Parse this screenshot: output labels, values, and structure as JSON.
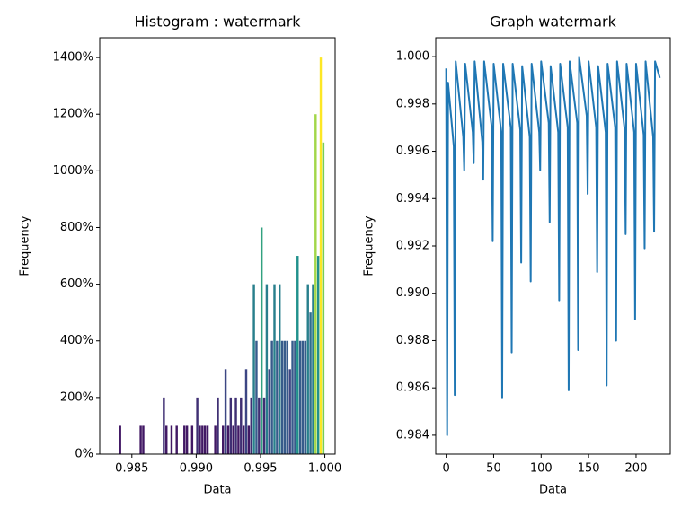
{
  "chart_data": [
    {
      "type": "histogram",
      "title": "Histogram : watermark",
      "xlabel": "Data",
      "ylabel": "Frequency",
      "colormap": "viridis",
      "bins": [
        0.984,
        0.9842,
        0.9844,
        0.9846,
        0.9848,
        0.985,
        0.9852,
        0.9854,
        0.9856,
        0.9858,
        0.986,
        0.9862,
        0.9864,
        0.9866,
        0.9868,
        0.987,
        0.9872,
        0.9874,
        0.9876,
        0.9878,
        0.988,
        0.9882,
        0.9884,
        0.9886,
        0.9888,
        0.989,
        0.9892,
        0.9894,
        0.9896,
        0.9898,
        0.99,
        0.9902,
        0.9904,
        0.9906,
        0.9908,
        0.991,
        0.9912,
        0.9914,
        0.9916,
        0.9918,
        0.992,
        0.9922,
        0.9924,
        0.9926,
        0.9928,
        0.993,
        0.9932,
        0.9934,
        0.9936,
        0.9938,
        0.994,
        0.9942,
        0.9944,
        0.9946,
        0.9948,
        0.995,
        0.9952,
        0.9954,
        0.9956,
        0.9958,
        0.996,
        0.9962,
        0.9964,
        0.9966,
        0.9968,
        0.997,
        0.9972,
        0.9974,
        0.9976,
        0.9978,
        0.998,
        0.9982,
        0.9984,
        0.9986,
        0.9988,
        0.999,
        0.9992,
        0.9994,
        0.9996,
        0.9998,
        1.0
      ],
      "values": [
        100,
        0,
        0,
        0,
        0,
        0,
        0,
        0,
        100,
        100,
        0,
        0,
        0,
        0,
        0,
        0,
        0,
        200,
        100,
        0,
        100,
        0,
        100,
        0,
        0,
        100,
        100,
        0,
        100,
        0,
        200,
        100,
        100,
        100,
        100,
        0,
        0,
        100,
        200,
        0,
        100,
        300,
        100,
        200,
        100,
        200,
        100,
        200,
        100,
        300,
        100,
        200,
        600,
        400,
        200,
        800,
        200,
        600,
        300,
        400,
        600,
        400,
        600,
        400,
        400,
        400,
        300,
        400,
        400,
        700,
        400,
        400,
        400,
        600,
        500,
        600,
        1200,
        700,
        1400,
        1100
      ],
      "xlim": [
        0.9825,
        1.0008
      ],
      "xticks": [
        0.985,
        {
          "value": 0.99,
          "label": "0.990"
        },
        0.995,
        {
          "value": 1.0,
          "label": "1.000"
        }
      ],
      "ylim": [
        0,
        1470
      ],
      "yticks": [
        {
          "value": 0,
          "label": "0%"
        },
        {
          "value": 200,
          "label": "200%"
        },
        {
          "value": 400,
          "label": "400%"
        },
        {
          "value": 600,
          "label": "600%"
        },
        {
          "value": 800,
          "label": "800%"
        },
        {
          "value": 1000,
          "label": "1000%"
        },
        {
          "value": 1200,
          "label": "1200%"
        },
        {
          "value": 1400,
          "label": "1400%"
        }
      ]
    },
    {
      "type": "line",
      "title": "Graph watermark",
      "xlabel": "Data",
      "ylabel": "Frequency",
      "color": "#1f77b4",
      "x": [
        0,
        1,
        2,
        8,
        9,
        10,
        18,
        19,
        20,
        28,
        29,
        30,
        38,
        39,
        40,
        48,
        49,
        50,
        58,
        59,
        60,
        68,
        69,
        70,
        78,
        79,
        80,
        88,
        89,
        90,
        98,
        99,
        100,
        108,
        109,
        110,
        118,
        119,
        120,
        128,
        129,
        130,
        138,
        139,
        140,
        148,
        149,
        150,
        158,
        159,
        160,
        168,
        169,
        170,
        178,
        179,
        180,
        188,
        189,
        190,
        198,
        199,
        200,
        208,
        209,
        210,
        218,
        219,
        220,
        225
      ],
      "values": [
        0.9995,
        0.984,
        0.9989,
        0.9962,
        0.9857,
        0.9998,
        0.9966,
        0.9952,
        0.9997,
        0.9968,
        0.9955,
        0.9998,
        0.9964,
        0.9948,
        0.9998,
        0.997,
        0.9922,
        0.9997,
        0.9968,
        0.9856,
        0.9997,
        0.997,
        0.9875,
        0.9997,
        0.9969,
        0.9913,
        0.9996,
        0.9966,
        0.9905,
        0.9997,
        0.9968,
        0.9952,
        0.9998,
        0.9972,
        0.993,
        0.9996,
        0.9968,
        0.9897,
        0.9997,
        0.997,
        0.9859,
        0.9998,
        0.9972,
        0.9876,
        1.0,
        0.9975,
        0.9942,
        0.9998,
        0.997,
        0.9909,
        0.9996,
        0.9968,
        0.9861,
        0.9997,
        0.997,
        0.988,
        0.9998,
        0.9969,
        0.9925,
        0.9997,
        0.9968,
        0.9889,
        0.9997,
        0.9967,
        0.9919,
        0.9998,
        0.9966,
        0.9926,
        0.9998,
        0.9991
      ],
      "xlim": [
        -11,
        236
      ],
      "xticks": [
        0,
        50,
        100,
        150,
        200
      ],
      "ylim": [
        0.9832,
        1.0008
      ],
      "yticks": [
        0.984,
        0.986,
        0.988,
        {
          "value": 0.99,
          "label": "0.990"
        },
        0.992,
        0.994,
        0.996,
        0.998,
        {
          "value": 1.0,
          "label": "1.000"
        }
      ]
    }
  ]
}
